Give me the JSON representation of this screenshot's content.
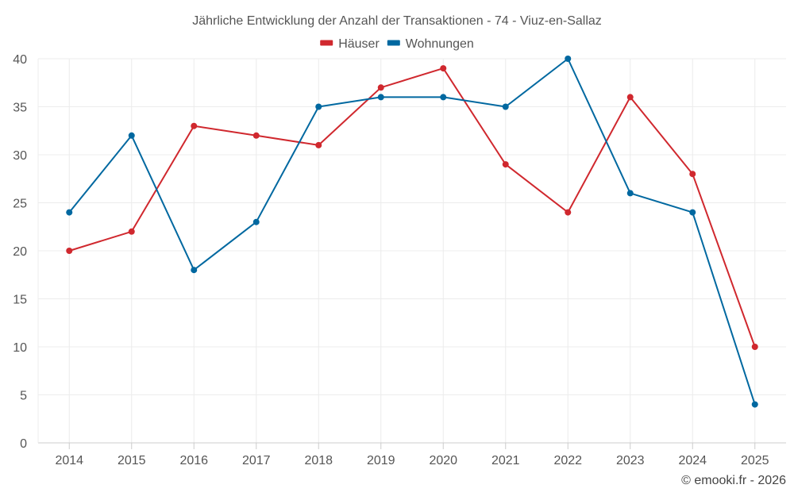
{
  "chart_data": {
    "type": "line",
    "title": "Jährliche Entwicklung der Anzahl der Transaktionen - 74 - Viuz-en-Sallaz",
    "xlabel": "",
    "ylabel": "",
    "categories": [
      "2014",
      "2015",
      "2016",
      "2017",
      "2018",
      "2019",
      "2020",
      "2021",
      "2022",
      "2023",
      "2024",
      "2025"
    ],
    "ylim": [
      0,
      40
    ],
    "yticks": [
      0,
      5,
      10,
      15,
      20,
      25,
      30,
      35,
      40
    ],
    "grid": true,
    "legend_position": "top-center",
    "series": [
      {
        "name": "Häuser",
        "color": "#d0282e",
        "values": [
          20,
          22,
          33,
          32,
          31,
          37,
          39,
          29,
          24,
          36,
          28,
          10
        ]
      },
      {
        "name": "Wohnungen",
        "color": "#0068a0",
        "values": [
          24,
          32,
          18,
          23,
          35,
          36,
          36,
          35,
          40,
          26,
          24,
          4
        ]
      }
    ]
  },
  "footer": {
    "credit": "© emooki.fr - 2026"
  },
  "colors": {
    "grid": "#ececec",
    "axis": "#cccccc",
    "text": "#555555",
    "title": "#555555"
  }
}
